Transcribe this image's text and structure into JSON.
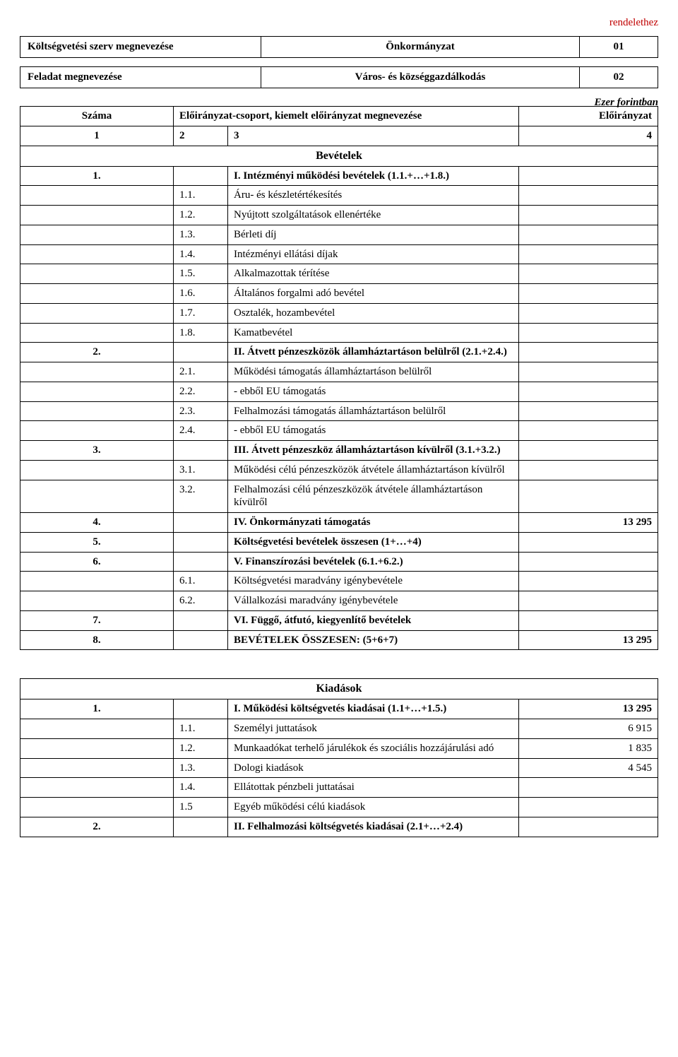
{
  "topRight": "rendelethez",
  "headerTable": {
    "r1c1": "Költségvetési szerv megnevezése",
    "r1c2": "Önkormányzat",
    "r1c3": "01",
    "r2c1": "Feladat megnevezése",
    "r2c2": "Város- és községgazdálkodás",
    "r2c3": "02"
  },
  "ezer": "Ezer forintban",
  "colHeader": {
    "szama": "Száma",
    "group": "Előirányzat-csoport, kiemelt előirányzat megnevezése",
    "eloiranyzat": "Előirányzat",
    "n1": "1",
    "n2": "2",
    "n3": "3",
    "n4": "4"
  },
  "bevetelekTitle": "Bevételek",
  "rows1": [
    {
      "a": "1.",
      "b": "",
      "c": "I. Intézményi működési bevételek (1.1.+…+1.8.)",
      "d": "",
      "bold": true
    },
    {
      "a": "",
      "b": "1.1.",
      "c": "Áru- és készletértékesítés",
      "d": ""
    },
    {
      "a": "",
      "b": "1.2.",
      "c": "Nyújtott szolgáltatások ellenértéke",
      "d": ""
    },
    {
      "a": "",
      "b": "1.3.",
      "c": "Bérleti díj",
      "d": ""
    },
    {
      "a": "",
      "b": "1.4.",
      "c": "Intézményi ellátási díjak",
      "d": ""
    },
    {
      "a": "",
      "b": "1.5.",
      "c": "Alkalmazottak térítése",
      "d": ""
    },
    {
      "a": "",
      "b": "1.6.",
      "c": "Általános forgalmi adó bevétel",
      "d": ""
    },
    {
      "a": "",
      "b": "1.7.",
      "c": "Osztalék,  hozambevétel",
      "d": ""
    },
    {
      "a": "",
      "b": "1.8.",
      "c": "Kamatbevétel",
      "d": ""
    },
    {
      "a": "2.",
      "b": "",
      "c": "II. Átvett pénzeszközök államháztartáson belülről (2.1.+2.4.)",
      "d": "",
      "bold": true
    },
    {
      "a": "",
      "b": "2.1.",
      "c": "Működési támogatás államháztartáson belülről",
      "d": ""
    },
    {
      "a": "",
      "b": "2.2.",
      "c": "  - ebből EU támogatás",
      "d": ""
    },
    {
      "a": "",
      "b": "2.3.",
      "c": "Felhalmozási támogatás államháztartáson belülről",
      "d": ""
    },
    {
      "a": "",
      "b": "2.4.",
      "c": "  - ebből EU támogatás",
      "d": ""
    },
    {
      "a": "3.",
      "b": "",
      "c": "III. Átvett pénzeszköz államháztartáson kívülről (3.1.+3.2.)",
      "d": "",
      "bold": true
    },
    {
      "a": "",
      "b": "3.1.",
      "c": "Működési célú pénzeszközök átvétele államháztartáson kívülről",
      "d": ""
    },
    {
      "a": "",
      "b": "3.2.",
      "c": "Felhalmozási célú pénzeszközök átvétele államháztartáson kívülről",
      "d": ""
    },
    {
      "a": "4.",
      "b": "",
      "c": "IV. Önkormányzati támogatás",
      "d": "13 295",
      "bold": true
    },
    {
      "a": "5.",
      "b": "",
      "c": "Költségvetési bevételek összesen (1+…+4)",
      "d": "",
      "bold": true
    },
    {
      "a": "6.",
      "b": "",
      "c": "V. Finanszírozási bevételek (6.1.+6.2.)",
      "d": "",
      "bold": true
    },
    {
      "a": "",
      "b": "6.1.",
      "c": "Költségvetési maradvány igénybevétele",
      "d": ""
    },
    {
      "a": "",
      "b": "6.2.",
      "c": "Vállalkozási maradvány igénybevétele",
      "d": ""
    },
    {
      "a": "7.",
      "b": "",
      "c": "VI. Függő, átfutó, kiegyenlítő bevételek",
      "d": "",
      "bold": true
    },
    {
      "a": "8.",
      "b": "",
      "c": "BEVÉTELEK ÖSSZESEN: (5+6+7)",
      "d": "13 295",
      "bold": true
    }
  ],
  "kiadasokTitle": "Kiadások",
  "rows2": [
    {
      "a": "1.",
      "b": "",
      "c": "I. Működési költségvetés kiadásai (1.1+…+1.5.)",
      "d": "13 295",
      "bold": true
    },
    {
      "a": "",
      "b": "1.1.",
      "c": "Személyi  juttatások",
      "d": "6 915"
    },
    {
      "a": "",
      "b": "1.2.",
      "c": "Munkaadókat terhelő járulékok és szociális hozzájárulási adó",
      "d": "1 835"
    },
    {
      "a": "",
      "b": "1.3.",
      "c": "Dologi  kiadások",
      "d": "4 545"
    },
    {
      "a": "",
      "b": "1.4.",
      "c": "Ellátottak pénzbeli juttatásai",
      "d": ""
    },
    {
      "a": "",
      "b": "1.5",
      "c": "Egyéb működési célú kiadások",
      "d": ""
    },
    {
      "a": "2.",
      "b": "",
      "c": "II. Felhalmozási költségvetés kiadásai (2.1+…+2.4)",
      "d": "",
      "bold": true
    }
  ]
}
